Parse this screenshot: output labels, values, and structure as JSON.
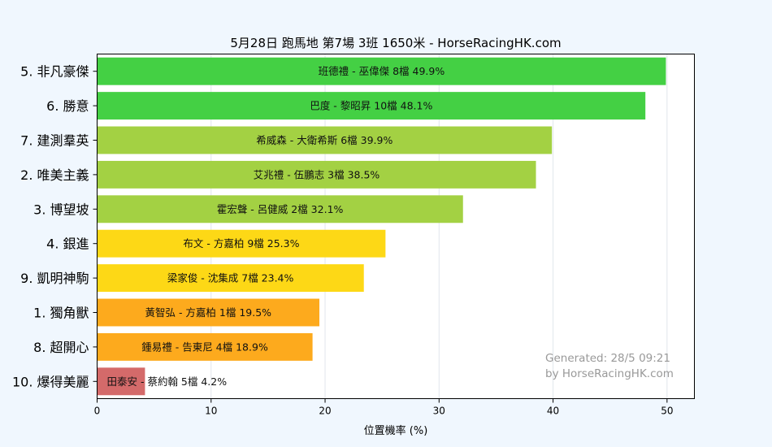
{
  "chart_data": {
    "type": "bar",
    "orientation": "horizontal",
    "title": "5月28日  跑馬地  第7場  3班  1650米 - HorseRacingHK.com",
    "xlabel": "位置機率 (%)",
    "ylabel": "",
    "xlim": [
      0,
      52.4
    ],
    "xticks": [
      0,
      10,
      20,
      30,
      40,
      50
    ],
    "grid": true,
    "categories": [
      "5. 非凡豪傑",
      "6. 勝意",
      "7. 建測羣英",
      "2. 唯美主義",
      "3. 博望坡",
      "4. 銀進",
      "9. 凱明神駒",
      "1. 獨角獸",
      "8. 超開心",
      "10. 爆得美麗"
    ],
    "values": [
      49.9,
      48.1,
      39.9,
      38.5,
      32.1,
      25.3,
      23.4,
      19.5,
      18.9,
      4.2
    ],
    "labels": [
      "班德禮 - 巫偉傑 8檔  49.9%",
      "巴度 - 黎昭昇 10檔  48.1%",
      "希威森 - 大衛希斯 6檔  39.9%",
      "艾兆禮 - 伍鵬志 3檔  38.5%",
      "霍宏聲 - 呂健威 2檔  32.1%",
      "布文 - 方嘉柏 9檔  25.3%",
      "梁家俊 - 沈集成 7檔  23.4%",
      "黃智弘 - 方嘉柏 1檔  19.5%",
      "鍾易禮 - 告東尼 4檔  18.9%",
      "田泰安 - 蔡約翰 5檔  4.2%"
    ],
    "colors": [
      "#44d044",
      "#44d044",
      "#a3d143",
      "#a3d143",
      "#a3d143",
      "#fdd816",
      "#fdd816",
      "#fdaa1d",
      "#fdaa1d",
      "#d46a6a"
    ],
    "credit_lines": [
      "Generated: 28/5 09:21",
      "by HorseRacingHK.com"
    ]
  }
}
